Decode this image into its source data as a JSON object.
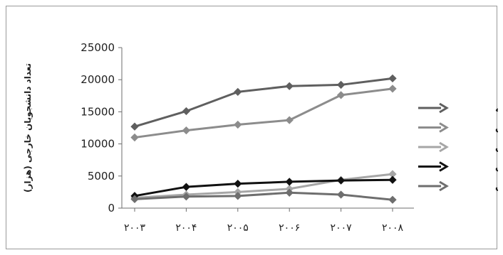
{
  "chart_data": {
    "type": "line",
    "title": "",
    "ylabel": "تعداد دانشجویان خارجی (هزار)",
    "xlabel": "",
    "categories": [
      "۲۰۰۳",
      "۲۰۰۴",
      "۲۰۰۵",
      "۲۰۰۶",
      "۲۰۰۷",
      "۲۰۰۸"
    ],
    "ylim": [
      0,
      25000
    ],
    "yticks": [
      0,
      5000,
      10000,
      15000,
      20000,
      25000
    ],
    "grid": false,
    "legend_position": "right",
    "series": [
      {
        "name": "ترکیه",
        "color": "#5f5f5f",
        "values": [
          12700,
          15100,
          18100,
          19000,
          19200,
          20200
        ]
      },
      {
        "name": "عربستان",
        "color": "#8c8c8c",
        "values": [
          11000,
          12100,
          13000,
          13700,
          17600,
          18600
        ]
      },
      {
        "name": "آذربایجان",
        "color": "#a6a6a6",
        "values": [
          1600,
          2100,
          2500,
          3000,
          4400,
          5300
        ]
      },
      {
        "name": "ارمنستان",
        "color": "#111111",
        "values": [
          1900,
          3300,
          3800,
          4100,
          4300,
          4400
        ]
      },
      {
        "name": "ایران",
        "color": "#6e6e6e",
        "values": [
          1400,
          1800,
          1900,
          2400,
          2100,
          1300
        ]
      }
    ]
  }
}
